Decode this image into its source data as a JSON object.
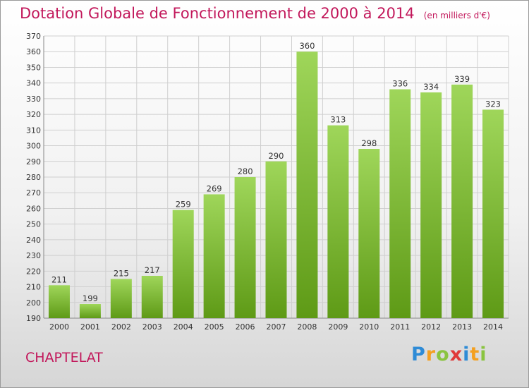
{
  "title": "Dotation Globale de Fonctionnement de 2000 à 2014",
  "subtitle": "(en milliers d'€)",
  "commune": "CHAPTELAT",
  "logo": {
    "letters": [
      {
        "ch": "P",
        "color": "#2e8bd6"
      },
      {
        "ch": "r",
        "color": "#f4a020"
      },
      {
        "ch": "o",
        "color": "#8ac43f"
      },
      {
        "ch": "x",
        "color": "#e03a3a"
      },
      {
        "ch": "i",
        "color": "#2e8bd6"
      },
      {
        "ch": "t",
        "color": "#f4a020"
      },
      {
        "ch": "i",
        "color": "#8ac43f"
      }
    ]
  },
  "colors": {
    "title": "#c2185b",
    "bar_top": "#9fd65a",
    "bar_bottom": "#5e9a16",
    "grid": "#cfcfcf"
  },
  "chart_data": {
    "type": "bar",
    "categories": [
      "2000",
      "2001",
      "2002",
      "2003",
      "2004",
      "2005",
      "2006",
      "2007",
      "2008",
      "2009",
      "2010",
      "2011",
      "2012",
      "2013",
      "2014"
    ],
    "values": [
      211,
      199,
      215,
      217,
      259,
      269,
      280,
      290,
      360,
      313,
      298,
      336,
      334,
      339,
      323
    ],
    "ylim": [
      190,
      370
    ],
    "yticks": [
      190,
      200,
      210,
      220,
      230,
      240,
      250,
      260,
      270,
      280,
      290,
      300,
      310,
      320,
      330,
      340,
      350,
      360,
      370
    ],
    "grid": true
  }
}
